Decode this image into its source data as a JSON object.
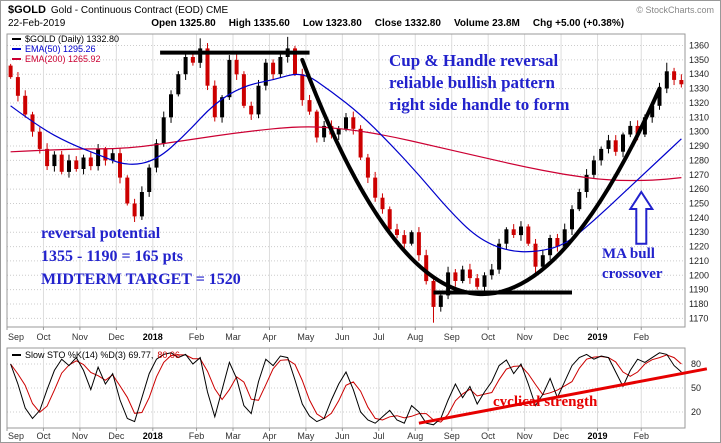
{
  "header": {
    "symbol": "$GOLD",
    "title": "Gold - Continuous Contract (EOD) CME",
    "copyright": "© StockCharts.com",
    "date": "22-Feb-2019",
    "quote_parts": [
      "Open 1325.80",
      "High 1335.60",
      "Low 1323.80",
      "Close 1332.80",
      "Volume 23.8M",
      "Chg +5.00 (+0.38%)"
    ]
  },
  "legend": {
    "price": "$GOLD (Daily) 1332.80",
    "ema50": "EMA(50) 1295.26",
    "ema200": "EMA(200) 1265.92"
  },
  "stoch_legend": {
    "text": "Slow STO %K(14) %D(3) 69.77,",
    "d_value": "80.06"
  },
  "annotations": {
    "cup_lines": [
      "Cup & Handle reversal",
      "reliable bullish pattern",
      "right side handle to form"
    ],
    "target_lines": [
      "reversal potential",
      "1355 - 1190 = 165 pts",
      "MIDTERM TARGET  = 1520"
    ],
    "ma_lines": [
      "MA bull",
      "crossover"
    ],
    "strength": "cyclical strength"
  },
  "colors": {
    "candle_up": "#000000",
    "candle_down": "#cc0000",
    "ema50": "#0000cc",
    "ema200": "#cc0033",
    "annotation_blue": "#2222cc",
    "trend_red": "#e60000",
    "grid": "#cccccc",
    "month_grid": "#dddddd",
    "frame": "#999999"
  },
  "chart_data": [
    {
      "type": "candlestick",
      "title": "$GOLD Gold - Continuous Contract (EOD) CME, Daily",
      "last_close": 1332.8,
      "ohlc_today": {
        "open": 1325.8,
        "high": 1335.6,
        "low": 1323.8,
        "close": 1332.8,
        "volume": "23.8M",
        "change": "+5.00 (+0.38%)"
      },
      "price_axis": {
        "min": 1170,
        "max": 1360,
        "step": 10,
        "ticks": [
          1360,
          1350,
          1340,
          1330,
          1320,
          1310,
          1300,
          1290,
          1280,
          1270,
          1260,
          1250,
          1240,
          1230,
          1220,
          1210,
          1200,
          1190,
          1180,
          1170
        ]
      },
      "months": [
        {
          "label": "Sep",
          "start": 0
        },
        {
          "label": "Oct",
          "start": 5
        },
        {
          "label": "Nov",
          "start": 10
        },
        {
          "label": "Dec",
          "start": 15
        },
        {
          "label": "2018",
          "start": 20,
          "bold": true
        },
        {
          "label": "Feb",
          "start": 26
        },
        {
          "label": "Mar",
          "start": 31
        },
        {
          "label": "Apr",
          "start": 36
        },
        {
          "label": "May",
          "start": 41
        },
        {
          "label": "Jun",
          "start": 46
        },
        {
          "label": "Jul",
          "start": 51
        },
        {
          "label": "Aug",
          "start": 56
        },
        {
          "label": "Sep",
          "start": 61
        },
        {
          "label": "Oct",
          "start": 66
        },
        {
          "label": "Nov",
          "start": 71
        },
        {
          "label": "Dec",
          "start": 76
        },
        {
          "label": "2019",
          "start": 81,
          "bold": true
        },
        {
          "label": "Feb",
          "start": 87
        }
      ],
      "closes": [
        1338,
        1325,
        1312,
        1300,
        1288,
        1276,
        1284,
        1272,
        1280,
        1274,
        1282,
        1276,
        1288,
        1280,
        1285,
        1268,
        1250,
        1241,
        1258,
        1275,
        1292,
        1310,
        1326,
        1340,
        1352,
        1348,
        1358,
        1332,
        1310,
        1324,
        1350,
        1340,
        1318,
        1312,
        1332,
        1348,
        1340,
        1352,
        1358,
        1340,
        1322,
        1314,
        1296,
        1304,
        1298,
        1302,
        1310,
        1302,
        1282,
        1268,
        1254,
        1246,
        1232,
        1228,
        1222,
        1230,
        1214,
        1196,
        1178,
        1186,
        1202,
        1196,
        1204,
        1198,
        1192,
        1200,
        1204,
        1222,
        1232,
        1228,
        1234,
        1222,
        1206,
        1214,
        1226,
        1220,
        1232,
        1246,
        1258,
        1270,
        1280,
        1288,
        1294,
        1286,
        1298,
        1304,
        1298,
        1310,
        1318,
        1330,
        1342,
        1336,
        1333
      ],
      "high_overrides": {
        "26": 1365,
        "38": 1366,
        "90": 1348
      },
      "low_overrides": {
        "58": 1167,
        "72": 1199
      },
      "ema50_points": [
        [
          0,
          1318
        ],
        [
          4,
          1303
        ],
        [
          8,
          1292
        ],
        [
          12,
          1284
        ],
        [
          16,
          1276
        ],
        [
          20,
          1280
        ],
        [
          24,
          1298
        ],
        [
          28,
          1320
        ],
        [
          32,
          1332
        ],
        [
          36,
          1336
        ],
        [
          40,
          1342
        ],
        [
          44,
          1328
        ],
        [
          48,
          1312
        ],
        [
          52,
          1292
        ],
        [
          56,
          1270
        ],
        [
          60,
          1246
        ],
        [
          64,
          1226
        ],
        [
          68,
          1217
        ],
        [
          72,
          1216
        ],
        [
          76,
          1221
        ],
        [
          80,
          1238
        ],
        [
          84,
          1257
        ],
        [
          88,
          1276
        ],
        [
          92,
          1295
        ]
      ],
      "ema200_points": [
        [
          0,
          1286
        ],
        [
          8,
          1288
        ],
        [
          16,
          1288
        ],
        [
          24,
          1294
        ],
        [
          32,
          1300
        ],
        [
          40,
          1304
        ],
        [
          46,
          1302
        ],
        [
          52,
          1297
        ],
        [
          58,
          1290
        ],
        [
          64,
          1283
        ],
        [
          70,
          1276
        ],
        [
          76,
          1270
        ],
        [
          82,
          1266
        ],
        [
          88,
          1266
        ],
        [
          92,
          1268
        ]
      ],
      "drawings": {
        "cup_curve": {
          "p0": [
            40,
            1350
          ],
          "p1": [
            56,
            1136
          ],
          "p2": [
            72,
            1136
          ],
          "p3": [
            89,
            1330
          ]
        },
        "resistance_line": {
          "from_bar": 21,
          "to_bar": 41.5,
          "price": 1355
        },
        "support_line": {
          "from_bar": 58.5,
          "to_bar": 77.5,
          "price": 1188
        },
        "arrow": {
          "bar": 86.5,
          "price_from": 1222,
          "price_to": 1258
        }
      }
    },
    {
      "type": "line",
      "title": "Slow STO %K(14) %D(3)",
      "k_current": 69.77,
      "d_current": 80.06,
      "axis_ticks": [
        80,
        50,
        20
      ],
      "axis_range": [
        0,
        100
      ],
      "k_values": [
        80,
        55,
        25,
        12,
        22,
        48,
        72,
        86,
        78,
        88,
        72,
        48,
        76,
        55,
        68,
        35,
        12,
        8,
        38,
        68,
        86,
        92,
        94,
        88,
        92,
        80,
        88,
        45,
        14,
        48,
        82,
        62,
        28,
        18,
        58,
        86,
        78,
        90,
        88,
        60,
        30,
        15,
        8,
        12,
        35,
        55,
        70,
        48,
        20,
        10,
        6,
        14,
        22,
        10,
        6,
        28,
        20,
        6,
        4,
        12,
        35,
        55,
        38,
        52,
        30,
        45,
        58,
        78,
        85,
        68,
        80,
        55,
        28,
        42,
        62,
        38,
        58,
        78,
        88,
        92,
        86,
        90,
        88,
        70,
        52,
        72,
        86,
        82,
        88,
        94,
        92,
        78,
        70
      ],
      "trend_line": {
        "from": [
          56.5,
          6
        ],
        "to": [
          96,
          74
        ]
      }
    }
  ]
}
